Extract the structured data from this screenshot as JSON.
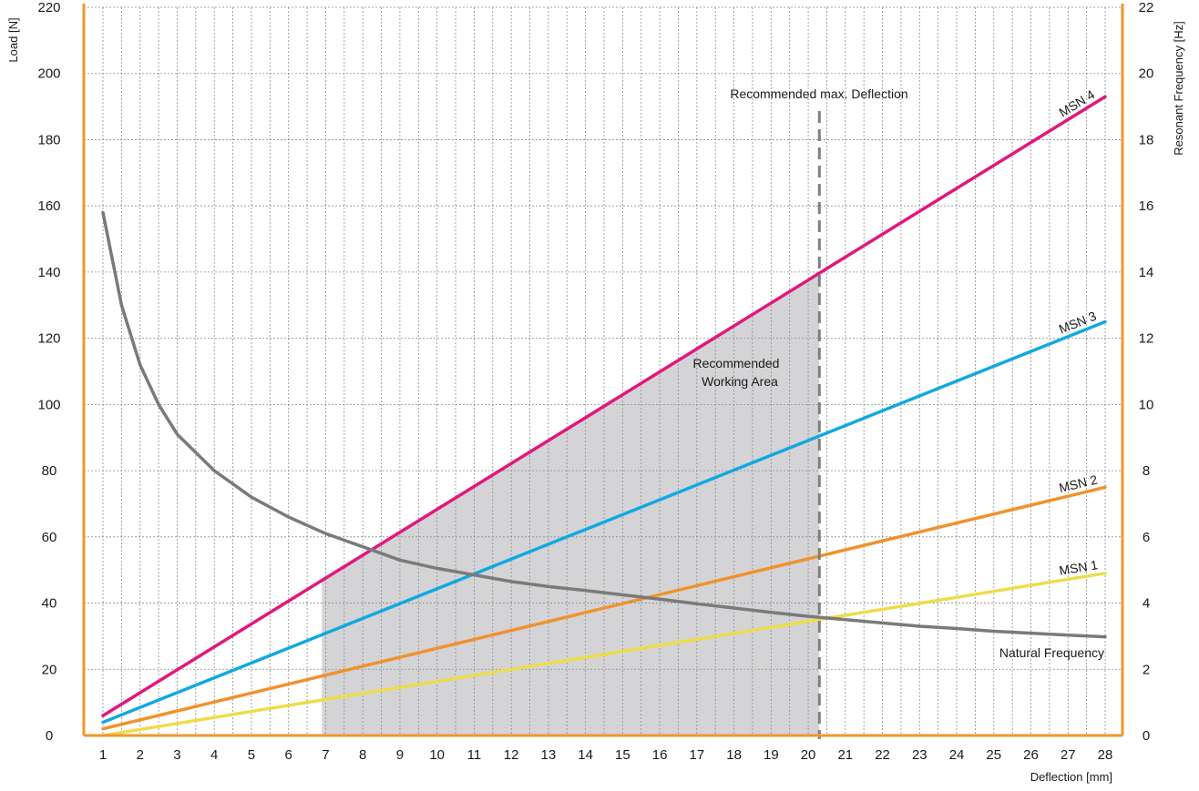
{
  "chart_data": {
    "type": "line",
    "xlabel": "Deflection [mm]",
    "ylabel_left": "Load [N]",
    "ylabel_right": "Resonant Frequency [Hz]",
    "x_ticks": [
      1,
      2,
      3,
      4,
      5,
      6,
      7,
      8,
      9,
      10,
      11,
      12,
      13,
      14,
      15,
      16,
      17,
      18,
      19,
      20,
      21,
      22,
      23,
      24,
      25,
      26,
      27,
      28
    ],
    "xlim": [
      1,
      28
    ],
    "ylim_left": [
      0,
      220
    ],
    "ylim_right": [
      0,
      22
    ],
    "y_ticks_left": [
      0,
      20,
      40,
      60,
      80,
      100,
      120,
      140,
      160,
      180,
      200,
      220
    ],
    "y_ticks_right": [
      0,
      2,
      4,
      6,
      8,
      10,
      12,
      14,
      16,
      18,
      20,
      22
    ],
    "grid": true,
    "colors": {
      "axis": "#f0962e",
      "grid": "#8c8c8c",
      "area": "#d4d4d6",
      "deflection_line": "#7f7f7f",
      "natural_frequency": "#7a7a7a"
    },
    "series": [
      {
        "name": "MSN 1",
        "axis": "left",
        "color": "#eedc4b",
        "x": [
          1,
          28
        ],
        "y": [
          0,
          49
        ]
      },
      {
        "name": "MSN 2",
        "axis": "left",
        "color": "#f0922c",
        "x": [
          1,
          28
        ],
        "y": [
          2,
          75
        ]
      },
      {
        "name": "MSN 3",
        "axis": "left",
        "color": "#12a8e0",
        "x": [
          1,
          28
        ],
        "y": [
          4,
          125
        ]
      },
      {
        "name": "MSN 4",
        "axis": "left",
        "color": "#e2177e",
        "x": [
          1,
          28
        ],
        "y": [
          6,
          193
        ]
      },
      {
        "name": "Natural Frequency",
        "axis": "right",
        "color": "#7a7a7a",
        "x": [
          1,
          1.5,
          2,
          2.5,
          3,
          4,
          5,
          6,
          7,
          8,
          9,
          10,
          11,
          12,
          13,
          14,
          15,
          16,
          17,
          18,
          19,
          20,
          21,
          22,
          23,
          24,
          25,
          26,
          27,
          28
        ],
        "y": [
          15.8,
          13.0,
          11.2,
          10.0,
          9.1,
          8.0,
          7.2,
          6.6,
          6.1,
          5.7,
          5.3,
          5.05,
          4.85,
          4.65,
          4.5,
          4.38,
          4.25,
          4.12,
          3.98,
          3.85,
          3.72,
          3.6,
          3.5,
          3.4,
          3.3,
          3.23,
          3.15,
          3.09,
          3.03,
          2.98
        ]
      }
    ],
    "max_deflection": {
      "x": 20.3,
      "label": "Recommended max. Deflection"
    },
    "working_area": {
      "label_line1": "Recommended",
      "label_line2": "Working Area",
      "x_from": 6.9,
      "x_to": 20.3
    }
  }
}
